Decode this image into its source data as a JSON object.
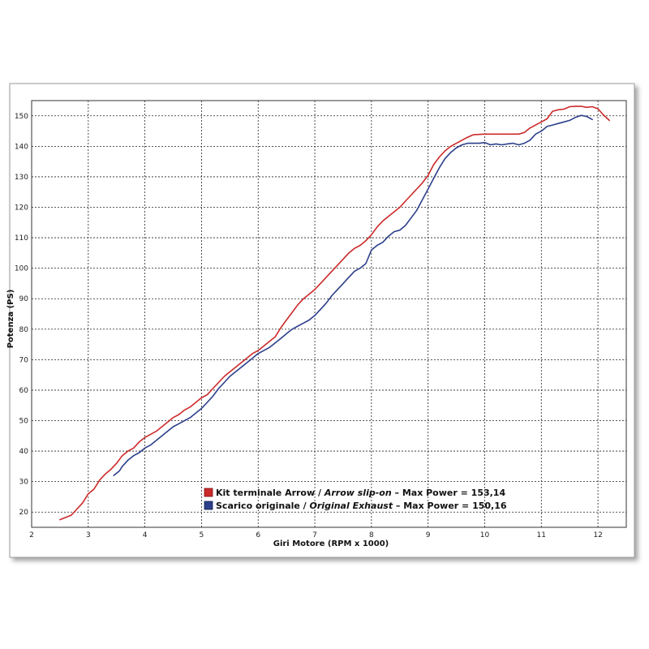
{
  "chart_data": {
    "type": "line",
    "xlabel": "Giri Motore (RPM x 1000)",
    "ylabel": "Potenza (PS)",
    "xlim": [
      2,
      12.5
    ],
    "ylim": [
      15,
      155
    ],
    "xticks": [
      2,
      3,
      4,
      5,
      6,
      7,
      8,
      9,
      10,
      11,
      12
    ],
    "yticks": [
      20,
      30,
      40,
      50,
      60,
      70,
      80,
      90,
      100,
      110,
      120,
      130,
      140,
      150
    ],
    "grid": true,
    "legend_position": "bottom-center",
    "series": [
      {
        "name": "Kit terminale Arrow / Arrow slip-on",
        "legend_main": "Kit terminale Arrow / ",
        "legend_italic": "Arrow slip-on",
        "legend_suffix": " – Max Power = 153,14",
        "color": "#cc2a2a",
        "points": [
          [
            2.5,
            17.5
          ],
          [
            2.7,
            19
          ],
          [
            2.8,
            21
          ],
          [
            2.9,
            23
          ],
          [
            3.0,
            26
          ],
          [
            3.1,
            27.5
          ],
          [
            3.2,
            30.5
          ],
          [
            3.3,
            32.5
          ],
          [
            3.4,
            34
          ],
          [
            3.5,
            36
          ],
          [
            3.6,
            38.5
          ],
          [
            3.7,
            40
          ],
          [
            3.8,
            41
          ],
          [
            3.9,
            43
          ],
          [
            4.0,
            44.5
          ],
          [
            4.1,
            45.5
          ],
          [
            4.2,
            46.5
          ],
          [
            4.3,
            48
          ],
          [
            4.4,
            49.5
          ],
          [
            4.5,
            51
          ],
          [
            4.6,
            52
          ],
          [
            4.7,
            53.5
          ],
          [
            4.8,
            54.5
          ],
          [
            4.9,
            56
          ],
          [
            5.0,
            57.5
          ],
          [
            5.1,
            58.5
          ],
          [
            5.2,
            60.5
          ],
          [
            5.3,
            62.5
          ],
          [
            5.4,
            64.5
          ],
          [
            5.5,
            66
          ],
          [
            5.6,
            67.5
          ],
          [
            5.7,
            69
          ],
          [
            5.8,
            70.5
          ],
          [
            5.9,
            72
          ],
          [
            6.0,
            73
          ],
          [
            6.1,
            74.5
          ],
          [
            6.2,
            76
          ],
          [
            6.3,
            77.5
          ],
          [
            6.4,
            80.5
          ],
          [
            6.5,
            83
          ],
          [
            6.6,
            85.5
          ],
          [
            6.7,
            88
          ],
          [
            6.8,
            90
          ],
          [
            6.9,
            91.5
          ],
          [
            7.0,
            93
          ],
          [
            7.1,
            95
          ],
          [
            7.2,
            97
          ],
          [
            7.3,
            99
          ],
          [
            7.4,
            101
          ],
          [
            7.5,
            103
          ],
          [
            7.6,
            105
          ],
          [
            7.7,
            106.5
          ],
          [
            7.8,
            107.5
          ],
          [
            7.9,
            109
          ],
          [
            8.0,
            111
          ],
          [
            8.1,
            113.5
          ],
          [
            8.2,
            115.5
          ],
          [
            8.3,
            117
          ],
          [
            8.4,
            118.5
          ],
          [
            8.5,
            120
          ],
          [
            8.6,
            122
          ],
          [
            8.7,
            124
          ],
          [
            8.8,
            126
          ],
          [
            8.9,
            128
          ],
          [
            9.0,
            130.5
          ],
          [
            9.1,
            134
          ],
          [
            9.2,
            136.5
          ],
          [
            9.3,
            138.5
          ],
          [
            9.4,
            140
          ],
          [
            9.5,
            141
          ],
          [
            9.6,
            142
          ],
          [
            9.7,
            143
          ],
          [
            9.8,
            143.8
          ],
          [
            10.0,
            144
          ],
          [
            10.2,
            144
          ],
          [
            10.4,
            144
          ],
          [
            10.6,
            144
          ],
          [
            10.7,
            144.5
          ],
          [
            10.8,
            146
          ],
          [
            10.9,
            147
          ],
          [
            11.0,
            148
          ],
          [
            11.1,
            149
          ],
          [
            11.2,
            151.5
          ],
          [
            11.3,
            152
          ],
          [
            11.4,
            152.2
          ],
          [
            11.5,
            153
          ],
          [
            11.6,
            153.1
          ],
          [
            11.7,
            153.14
          ],
          [
            11.8,
            152.8
          ],
          [
            11.9,
            153
          ],
          [
            12.0,
            152.3
          ],
          [
            12.1,
            150.2
          ],
          [
            12.2,
            148.5
          ]
        ]
      },
      {
        "name": "Scarico originale / Original Exhaust",
        "legend_main": "Scarico originale / ",
        "legend_italic": "Original Exhaust",
        "legend_suffix": " – Max Power = 150,16",
        "color": "#2c3f8a",
        "points": [
          [
            3.45,
            32
          ],
          [
            3.55,
            33.5
          ],
          [
            3.6,
            35
          ],
          [
            3.7,
            37
          ],
          [
            3.8,
            38.5
          ],
          [
            3.9,
            39.5
          ],
          [
            4.0,
            41
          ],
          [
            4.1,
            42
          ],
          [
            4.2,
            43.5
          ],
          [
            4.3,
            45
          ],
          [
            4.4,
            46.5
          ],
          [
            4.5,
            48
          ],
          [
            4.6,
            49
          ],
          [
            4.7,
            50
          ],
          [
            4.8,
            51
          ],
          [
            4.9,
            52.5
          ],
          [
            5.0,
            54
          ],
          [
            5.1,
            56
          ],
          [
            5.2,
            58
          ],
          [
            5.3,
            60.5
          ],
          [
            5.4,
            62.5
          ],
          [
            5.5,
            64.5
          ],
          [
            5.6,
            66
          ],
          [
            5.7,
            67.5
          ],
          [
            5.8,
            69
          ],
          [
            5.9,
            70.5
          ],
          [
            6.0,
            72
          ],
          [
            6.1,
            73
          ],
          [
            6.2,
            74
          ],
          [
            6.3,
            75.5
          ],
          [
            6.4,
            77
          ],
          [
            6.5,
            78.5
          ],
          [
            6.6,
            80
          ],
          [
            6.7,
            81
          ],
          [
            6.8,
            82
          ],
          [
            6.9,
            83
          ],
          [
            7.0,
            84.5
          ],
          [
            7.1,
            86.5
          ],
          [
            7.2,
            88.5
          ],
          [
            7.3,
            91
          ],
          [
            7.4,
            93
          ],
          [
            7.5,
            95
          ],
          [
            7.6,
            97
          ],
          [
            7.7,
            99
          ],
          [
            7.8,
            100
          ],
          [
            7.9,
            101.5
          ],
          [
            8.0,
            106
          ],
          [
            8.1,
            107.5
          ],
          [
            8.2,
            108.5
          ],
          [
            8.3,
            110.5
          ],
          [
            8.4,
            112
          ],
          [
            8.5,
            112.5
          ],
          [
            8.6,
            114
          ],
          [
            8.7,
            116.5
          ],
          [
            8.8,
            119
          ],
          [
            8.9,
            122.5
          ],
          [
            9.0,
            126
          ],
          [
            9.1,
            129.5
          ],
          [
            9.2,
            133
          ],
          [
            9.3,
            136
          ],
          [
            9.4,
            138
          ],
          [
            9.5,
            139.5
          ],
          [
            9.6,
            140.5
          ],
          [
            9.7,
            141
          ],
          [
            9.8,
            141
          ],
          [
            9.9,
            141
          ],
          [
            10.0,
            141.2
          ],
          [
            10.1,
            140.5
          ],
          [
            10.2,
            140.8
          ],
          [
            10.3,
            140.5
          ],
          [
            10.4,
            140.8
          ],
          [
            10.5,
            141
          ],
          [
            10.6,
            140.5
          ],
          [
            10.7,
            141
          ],
          [
            10.8,
            142
          ],
          [
            10.9,
            144
          ],
          [
            11.0,
            145
          ],
          [
            11.1,
            146.5
          ],
          [
            11.2,
            147
          ],
          [
            11.3,
            147.5
          ],
          [
            11.4,
            148
          ],
          [
            11.5,
            148.5
          ],
          [
            11.6,
            149.5
          ],
          [
            11.7,
            150.16
          ],
          [
            11.8,
            149.8
          ],
          [
            11.9,
            148.8
          ]
        ]
      }
    ]
  }
}
